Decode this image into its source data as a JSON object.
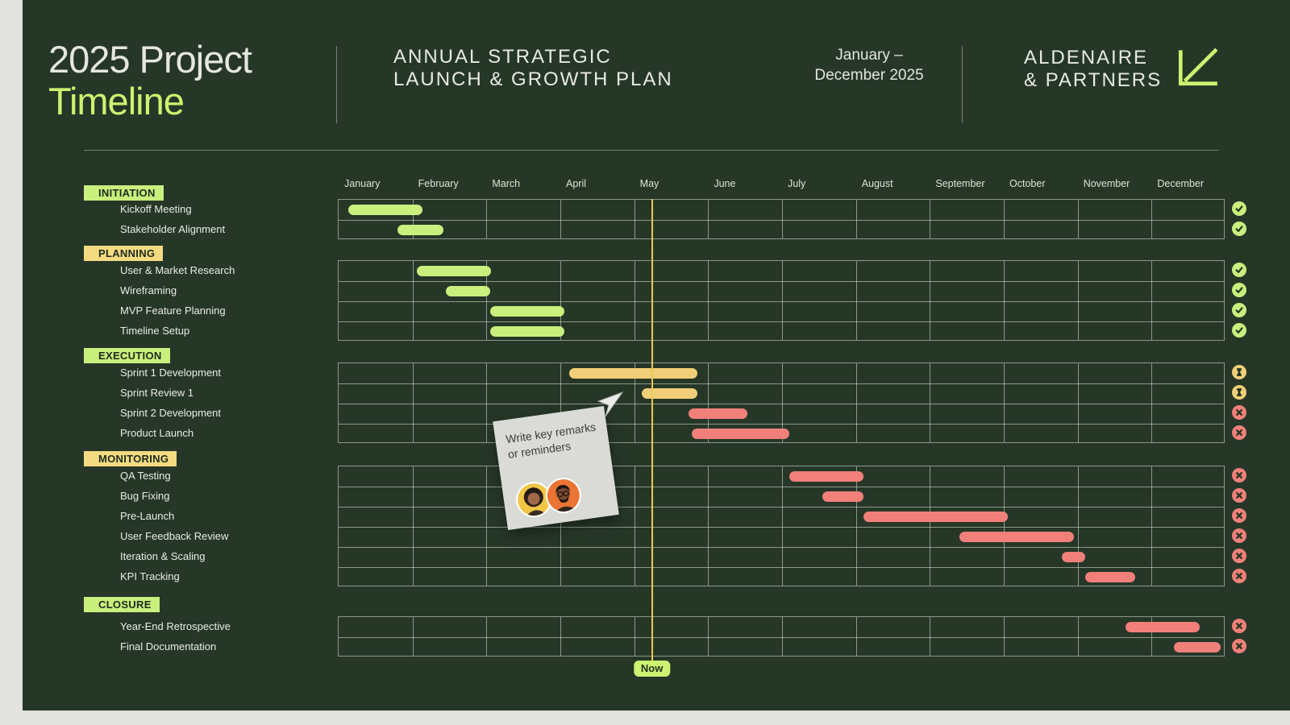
{
  "header": {
    "title_line1": "2025 Project",
    "title_line2": "Timeline",
    "subtitle": "ANNUAL STRATEGIC\nLAUNCH & GROWTH PLAN",
    "date_range": "January –\nDecember 2025",
    "brand": "ALDENAIRE\n& PARTNERS"
  },
  "note": {
    "text": "Write key remarks or reminders"
  },
  "colors": {
    "canvas": "#263728",
    "accent": "#ccf36f",
    "green": "#c9ef7d",
    "yellow": "#f1cf78",
    "chip_yellow": "#f4db82",
    "red": "#f1807a",
    "glyph_ink": "#213522",
    "now_line": "#edc952",
    "grid_line": "rgba(223,233,218,0.55)"
  },
  "chart_data": {
    "type": "gantt",
    "title": "2025 Project Timeline",
    "months": [
      "January",
      "February",
      "March",
      "April",
      "May",
      "June",
      "July",
      "August",
      "September",
      "October",
      "November",
      "December"
    ],
    "now_label": "Now",
    "now_position_month": 4.25,
    "sections": [
      {
        "name": "INITIATION",
        "chip_color": "green",
        "tasks": [
          {
            "label": "Kickoff Meeting",
            "start": 0.13,
            "end": 1.13,
            "color": "green",
            "status": "complete"
          },
          {
            "label": "Stakeholder Alignment",
            "start": 0.8,
            "end": 1.42,
            "color": "green",
            "status": "complete"
          }
        ]
      },
      {
        "name": "PLANNING",
        "chip_color": "yellow",
        "tasks": [
          {
            "label": "User & Market Research",
            "start": 1.06,
            "end": 2.06,
            "color": "green",
            "status": "complete"
          },
          {
            "label": "Wireframing",
            "start": 1.45,
            "end": 2.05,
            "color": "green",
            "status": "complete"
          },
          {
            "label": "MVP Feature Planning",
            "start": 2.05,
            "end": 3.05,
            "color": "green",
            "status": "complete"
          },
          {
            "label": "Timeline Setup",
            "start": 2.05,
            "end": 3.05,
            "color": "green",
            "status": "complete"
          }
        ]
      },
      {
        "name": "EXECUTION",
        "chip_color": "green",
        "tasks": [
          {
            "label": "Sprint 1 Development",
            "start": 3.12,
            "end": 4.85,
            "color": "yellow",
            "status": "in_progress"
          },
          {
            "label": "Sprint Review 1",
            "start": 4.1,
            "end": 4.85,
            "color": "yellow",
            "status": "in_progress"
          },
          {
            "label": "Sprint 2 Development",
            "start": 4.73,
            "end": 5.53,
            "color": "red",
            "status": "incomplete"
          },
          {
            "label": "Product Launch",
            "start": 4.78,
            "end": 6.1,
            "color": "red",
            "status": "incomplete"
          }
        ]
      },
      {
        "name": "MONITORING",
        "chip_color": "yellow",
        "tasks": [
          {
            "label": "QA Testing",
            "start": 6.1,
            "end": 7.1,
            "color": "red",
            "status": "incomplete"
          },
          {
            "label": "Bug Fixing",
            "start": 6.55,
            "end": 7.1,
            "color": "red",
            "status": "incomplete"
          },
          {
            "label": "Pre-Launch",
            "start": 7.1,
            "end": 9.05,
            "color": "red",
            "status": "incomplete"
          },
          {
            "label": "User Feedback Review",
            "start": 8.4,
            "end": 9.95,
            "color": "red",
            "status": "incomplete"
          },
          {
            "label": "Iteration & Scaling",
            "start": 9.78,
            "end": 10.1,
            "color": "red",
            "status": "incomplete"
          },
          {
            "label": "KPI Tracking",
            "start": 10.1,
            "end": 10.78,
            "color": "red",
            "status": "incomplete"
          }
        ]
      },
      {
        "name": "CLOSURE",
        "chip_color": "green",
        "tasks": [
          {
            "label": "Year-End Retrospective",
            "start": 10.65,
            "end": 11.65,
            "color": "red",
            "status": "incomplete"
          },
          {
            "label": "Final Documentation",
            "start": 11.3,
            "end": 11.93,
            "color": "red",
            "status": "incomplete"
          }
        ]
      }
    ]
  }
}
